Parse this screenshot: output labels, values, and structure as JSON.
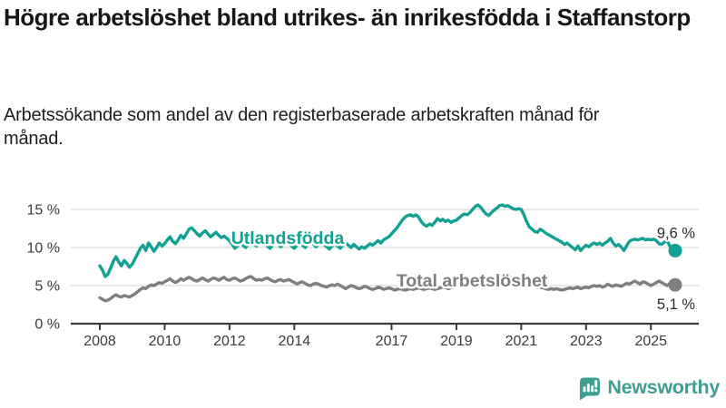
{
  "header": {
    "title": "Högre arbetslöshet bland utrikes- än inrikesfödda i Staffanstorp",
    "subtitle": "Arbetssökande som andel av den registerbaserade arbetskraften månad för månad."
  },
  "branding": {
    "logo_text": "Newsworthy",
    "logo_icon": "bar-chart-speech-bubble",
    "logo_color": "#3f9e92"
  },
  "colors": {
    "foreign_born_line": "#12a192",
    "total_line": "#7f7f7f",
    "axis": "#3a3a3a",
    "gridline": "#d9d9d9",
    "text": "#171717"
  },
  "chart_data": {
    "type": "line",
    "x_unit": "monthly",
    "x_start_year": 2008,
    "x_end_year": 2025.75,
    "x_tick_years": [
      2008,
      2010,
      2012,
      2014,
      2017,
      2019,
      2021,
      2023,
      2025
    ],
    "x_tick_labels": [
      "2008",
      "2010",
      "2012",
      "2014",
      "2017",
      "2019",
      "2021",
      "2023",
      "2025"
    ],
    "y_ticks": [
      0,
      5,
      10,
      15
    ],
    "y_tick_labels": [
      "0 %",
      "5 %",
      "10 %",
      "15 %"
    ],
    "ylim": [
      0,
      16.6
    ],
    "grid": "horizontal",
    "legend": "inline-labels",
    "series": [
      {
        "name": "Utlandsfödda",
        "color": "#12a192",
        "end_label": "9,6 %",
        "end_value": 9.6,
        "end_label_position": "above",
        "label_anchor": {
          "year": 2012.05,
          "value": 11.2
        },
        "values": [
          7.6,
          7.0,
          6.2,
          6.5,
          7.3,
          8.2,
          8.8,
          8.1,
          7.6,
          8.3,
          7.9,
          7.4,
          7.8,
          8.5,
          9.2,
          9.9,
          10.3,
          9.6,
          10.6,
          10.1,
          9.5,
          10.0,
          10.6,
          10.2,
          10.5,
          11.0,
          11.4,
          10.8,
          10.5,
          11.0,
          11.6,
          11.2,
          11.8,
          12.4,
          12.6,
          12.2,
          11.8,
          11.5,
          11.9,
          12.2,
          11.8,
          11.4,
          11.7,
          12.0,
          11.6,
          11.3,
          11.5,
          11.2,
          10.9,
          10.4,
          9.9,
          10.2,
          10.6,
          10.3,
          10.0,
          10.4,
          10.8,
          10.5,
          10.2,
          10.6,
          10.9,
          10.6,
          10.2,
          9.9,
          10.3,
          10.7,
          10.4,
          10.1,
          10.5,
          10.8,
          10.5,
          10.2,
          9.9,
          10.3,
          10.6,
          10.3,
          10.0,
          10.4,
          10.7,
          10.5,
          10.1,
          10.4,
          10.7,
          10.4,
          10.1,
          9.8,
          10.2,
          10.5,
          10.2,
          9.9,
          10.3,
          10.6,
          10.3,
          10.0,
          10.4,
          10.1,
          9.8,
          10.1,
          9.9,
          10.2,
          10.5,
          10.3,
          10.6,
          10.9,
          10.6,
          11.0,
          11.2,
          11.4,
          11.8,
          12.2,
          12.6,
          13.1,
          13.6,
          14.0,
          14.2,
          14.3,
          14.1,
          14.3,
          14.0,
          13.4,
          13.0,
          12.8,
          13.1,
          12.9,
          13.3,
          13.8,
          13.5,
          13.7,
          13.4,
          13.6,
          13.3,
          13.5,
          13.6,
          13.9,
          14.2,
          14.4,
          14.3,
          14.6,
          15.0,
          15.4,
          15.6,
          15.3,
          14.8,
          14.4,
          14.2,
          14.6,
          14.9,
          15.2,
          15.5,
          15.6,
          15.4,
          15.5,
          15.3,
          15.1,
          15.0,
          15.1,
          15.0,
          14.3,
          13.4,
          12.7,
          12.4,
          12.1,
          12.0,
          12.4,
          12.2,
          11.9,
          11.7,
          11.5,
          11.3,
          11.1,
          10.9,
          10.7,
          10.4,
          10.6,
          10.3,
          10.0,
          9.7,
          10.2,
          9.6,
          10.0,
          10.3,
          10.1,
          10.4,
          10.6,
          10.4,
          10.6,
          10.3,
          10.6,
          10.8,
          11.2,
          10.6,
          10.2,
          10.4,
          10.1,
          9.6,
          10.2,
          10.8,
          11.0,
          11.1,
          11.0,
          11.1,
          11.2,
          11.0,
          11.1,
          11.0,
          11.1,
          10.9,
          10.5,
          10.4,
          10.7,
          10.9,
          10.2,
          9.9,
          9.6
        ]
      },
      {
        "name": "Total arbetslöshet",
        "color": "#7f7f7f",
        "end_label": "5,1 %",
        "end_value": 5.1,
        "end_label_position": "below",
        "label_anchor": {
          "year": 2017.15,
          "value": 5.6
        },
        "values": [
          3.4,
          3.2,
          3.0,
          3.1,
          3.3,
          3.6,
          3.8,
          3.6,
          3.5,
          3.7,
          3.6,
          3.5,
          3.7,
          3.9,
          4.2,
          4.5,
          4.7,
          4.6,
          4.9,
          5.1,
          5.0,
          5.2,
          5.4,
          5.3,
          5.5,
          5.7,
          5.9,
          5.6,
          5.4,
          5.6,
          5.9,
          5.7,
          5.9,
          6.1,
          5.9,
          5.7,
          5.6,
          5.8,
          6.0,
          5.8,
          5.6,
          5.8,
          6.0,
          5.9,
          5.7,
          5.9,
          6.1,
          5.8,
          5.7,
          5.9,
          6.0,
          5.8,
          5.6,
          5.7,
          5.9,
          6.1,
          6.2,
          5.9,
          5.7,
          5.8,
          5.7,
          5.9,
          6.0,
          5.8,
          5.6,
          5.5,
          5.7,
          5.8,
          5.6,
          5.7,
          5.8,
          5.6,
          5.4,
          5.2,
          5.4,
          5.5,
          5.3,
          5.1,
          5.0,
          5.2,
          5.3,
          5.2,
          5.0,
          4.9,
          4.8,
          5.0,
          5.1,
          5.0,
          5.2,
          5.0,
          4.8,
          4.6,
          4.8,
          5.0,
          4.9,
          4.7,
          4.6,
          4.7,
          4.9,
          4.8,
          4.6,
          4.5,
          4.6,
          4.8,
          4.7,
          4.5,
          4.6,
          4.7,
          4.6,
          4.4,
          4.5,
          4.6,
          4.5,
          4.4,
          4.5,
          4.6,
          4.5,
          4.6,
          4.7,
          4.6,
          4.5,
          4.6,
          4.7,
          4.6,
          4.5,
          4.6,
          4.7,
          4.8,
          4.7,
          4.6,
          4.7,
          4.8,
          4.9,
          5.0,
          5.1,
          5.0,
          5.1,
          5.2,
          5.3,
          5.4,
          5.3,
          5.2,
          5.3,
          5.4,
          5.5,
          5.7,
          6.0,
          6.2,
          6.3,
          6.4,
          6.3,
          6.2,
          6.1,
          6.0,
          5.9,
          5.8,
          5.7,
          5.6,
          5.4,
          5.2,
          5.1,
          5.0,
          4.9,
          4.8,
          4.7,
          4.6,
          4.5,
          4.6,
          4.5,
          4.6,
          4.5,
          4.4,
          4.5,
          4.6,
          4.7,
          4.6,
          4.7,
          4.8,
          4.6,
          4.7,
          4.8,
          4.7,
          4.9,
          5.0,
          4.9,
          5.0,
          4.8,
          4.9,
          5.2,
          5.0,
          4.9,
          5.1,
          5.0,
          4.9,
          5.1,
          5.3,
          5.2,
          5.4,
          5.6,
          5.4,
          5.2,
          5.5,
          5.4,
          5.2,
          5.0,
          5.2,
          5.4,
          5.6,
          5.4,
          5.2,
          5.0,
          5.3,
          5.5,
          5.1
        ]
      }
    ]
  }
}
